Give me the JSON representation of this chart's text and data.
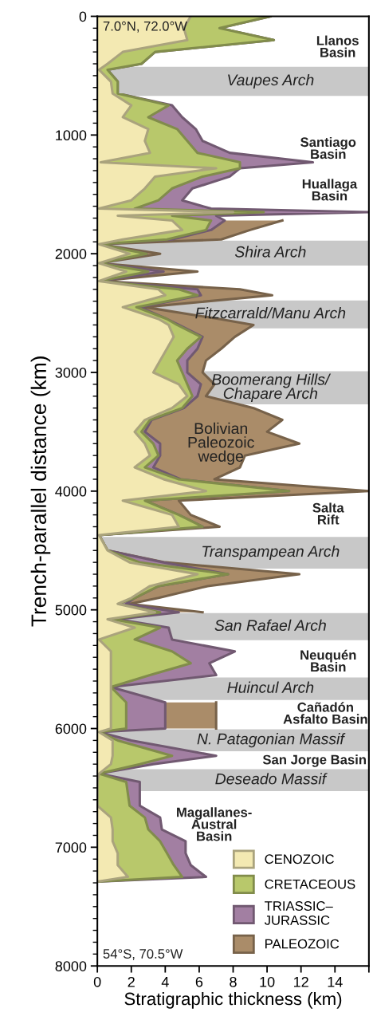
{
  "chart_data": {
    "type": "area",
    "orientation": "horizontal",
    "stacked": true,
    "xlabel": "Stratigraphic thickness (km)",
    "ylabel": "Trench-parallel distance (km)",
    "x": [
      0,
      100,
      200,
      300,
      400,
      450,
      550,
      650,
      750,
      850,
      950,
      1050,
      1150,
      1230,
      1280,
      1350,
      1450,
      1550,
      1620,
      1650,
      1680,
      1720,
      1800,
      1880,
      1920,
      2000,
      2080,
      2150,
      2230,
      2300,
      2350,
      2450,
      2550,
      2600,
      2700,
      2800,
      2900,
      3000,
      3100,
      3200,
      3300,
      3400,
      3500,
      3600,
      3700,
      3800,
      3900,
      4000,
      4080,
      4200,
      4300,
      4370,
      4500,
      4600,
      4700,
      4800,
      4900,
      4950,
      5020,
      5080,
      5150,
      5250,
      5350,
      5450,
      5550,
      5650,
      5780,
      6000,
      6030,
      6100,
      6230,
      6300,
      6380,
      6450,
      6650,
      6750,
      6850,
      6950,
      7050,
      7150,
      7250,
      7290
    ],
    "series": [
      {
        "name": "CENOZOIC",
        "color": "#f3e9b2",
        "values": [
          5.5,
          5.1,
          5.3,
          1.5,
          0.6,
          0.1,
          0.8,
          0.9,
          2.0,
          1.5,
          3.0,
          2.8,
          3.1,
          0.2,
          7.0,
          3.4,
          2.8,
          2.0,
          0.1,
          8.0,
          1.2,
          4.4,
          5.0,
          1.5,
          0.1,
          1.9,
          0.1,
          1.7,
          0.1,
          3.6,
          4.0,
          1.5,
          3.6,
          4.2,
          4.5,
          4.1,
          3.7,
          3.3,
          4.8,
          5.3,
          4.4,
          2.8,
          2.2,
          2.8,
          3.1,
          2.2,
          3.9,
          6.4,
          1.5,
          4.4,
          4.8,
          0.1,
          0.6,
          1.9,
          5.9,
          3.1,
          2.0,
          1.2,
          3.4,
          0.6,
          2.2,
          0.1,
          0.8,
          0.8,
          0.8,
          0.8,
          0.8,
          0.8,
          0.1,
          0.9,
          0.9,
          0.8,
          0.1,
          0,
          0,
          0.8,
          0.9,
          0.9,
          1.2,
          1.2,
          1.8,
          0
        ]
      },
      {
        "name": "CRETACEOUS",
        "color": "#b8c86b",
        "values": [
          4.7,
          2.1,
          5.1,
          1.9,
          2.0,
          0.5,
          0.4,
          0.3,
          2.2,
          1.5,
          1.7,
          2.5,
          2.8,
          8.2,
          1.4,
          2.8,
          1.6,
          1.6,
          2.1,
          1.8,
          3.2,
          2.3,
          1.4,
          2.6,
          0,
          1.0,
          0,
          1.3,
          0,
          1.2,
          1.9,
          0.8,
          0.5,
          0.5,
          1.6,
          1.2,
          1.0,
          1.7,
          0.5,
          0.3,
          0.6,
          0.3,
          0.4,
          0.5,
          0.5,
          0.6,
          0.9,
          4.9,
          1.3,
          0.4,
          1.4,
          0,
          0,
          0.6,
          1.8,
          0.5,
          0.2,
          0,
          0.3,
          0.3,
          1.5,
          2.1,
          3.6,
          4.7,
          2.3,
          0,
          0.9,
          0.9,
          0,
          0.3,
          3.5,
          1.7,
          0,
          1.7,
          1.9,
          2.0,
          2.1,
          2.8,
          2.9,
          3.3,
          3.2,
          0
        ]
      },
      {
        "name": "TRIASSIC–\nJURASSIC",
        "color": "#a27fa2",
        "values": [
          0,
          0,
          0,
          0,
          0,
          0,
          0,
          0,
          0.2,
          2.0,
          1.1,
          0.9,
          1.9,
          4.3,
          0,
          1.6,
          1.2,
          1.4,
          4.5,
          6.2,
          2.6,
          0.8,
          0.3,
          0.3,
          0,
          0,
          0,
          0.9,
          0,
          1.1,
          0.2,
          0.2,
          0,
          0.1,
          0.1,
          0.6,
          0.6,
          0.3,
          0.8,
          0.3,
          0.1,
          0.1,
          0.2,
          0.4,
          0.1,
          0.5,
          0.1,
          0,
          0,
          0,
          0,
          0,
          0,
          1.4,
          0,
          0,
          0,
          0.5,
          1.1,
          0.3,
          0.5,
          2.2,
          3.7,
          1.1,
          3.9,
          0,
          2.3,
          2.3,
          0,
          0.8,
          2.6,
          0.8,
          0,
          0.8,
          0.6,
          0.9,
          0.8,
          1.5,
          1.1,
          1.0,
          1.4,
          0
        ]
      },
      {
        "name": "PALEOZOIC",
        "color": "#aa8c69",
        "values": [
          null,
          null,
          null,
          null,
          null,
          null,
          null,
          null,
          null,
          null,
          null,
          null,
          null,
          null,
          null,
          null,
          null,
          null,
          null,
          null,
          null,
          3.4,
          2.3,
          2.9,
          0,
          0.8,
          0,
          2.0,
          0,
          2.5,
          4.2,
          0.3,
          3.1,
          4.4,
          1.9,
          1.4,
          1.1,
          0.9,
          0.8,
          0.5,
          4.1,
          7.7,
          7.2,
          8.2,
          5.0,
          5.1,
          2.0,
          4.7,
          2.0,
          0.7,
          1.0,
          0,
          0,
          0.1,
          4.2,
          2.9,
          1.4,
          0.2,
          1.4,
          null,
          null,
          null,
          null,
          null,
          null,
          null,
          3.0,
          3.0,
          null,
          null,
          null,
          null,
          null,
          null,
          null,
          null,
          null,
          null,
          null,
          null,
          null,
          null
        ]
      }
    ],
    "xlim": [
      0,
      16
    ],
    "xticks": [
      0,
      2,
      4,
      6,
      8,
      10,
      12,
      14,
      {
        "value": 16,
        "label": null
      }
    ],
    "ylim": [
      8000,
      0
    ],
    "yticks": [
      0,
      1000,
      2000,
      3000,
      4000,
      5000,
      6000,
      7000,
      8000
    ],
    "bands": [
      {
        "axis": "y",
        "from": 425,
        "to": 670,
        "label": "Vaupes Arch",
        "color": "#c8c8c8"
      },
      {
        "axis": "y",
        "from": 1890,
        "to": 2100,
        "label": "Shira Arch",
        "color": "#c8c8c8"
      },
      {
        "axis": "y",
        "from": 2393,
        "to": 2628,
        "label": "Fitzcarrald/Manu Arch",
        "color": "#c8c8c8"
      },
      {
        "axis": "y",
        "from": 2990,
        "to": 3268,
        "label": "Boomerang Hills/\nChapare Arch",
        "color": "#c8c8c8"
      },
      {
        "axis": "y",
        "from": 4385,
        "to": 4652,
        "label": "Transpampean Arch",
        "color": "#c8c8c8"
      },
      {
        "axis": "y",
        "from": 5028,
        "to": 5256,
        "label": "San Rafael Arch",
        "color": "#c8c8c8"
      },
      {
        "axis": "y",
        "from": 5570,
        "to": 5760,
        "label": "Huincul Arch",
        "color": "#c8c8c8"
      },
      {
        "axis": "y",
        "from": 6006,
        "to": 6191,
        "label": "N. Patagonian Massif",
        "color": "#c8c8c8"
      },
      {
        "axis": "y",
        "from": 6342,
        "to": 6528,
        "label": "Deseado Massif",
        "color": "#c8c8c8"
      }
    ],
    "annotations": [
      "7.0°N, 72.0°W",
      "54°S, 70.5°W",
      "Llanos\nBasin",
      "Santiago\nBasin",
      "Huallaga\nBasin",
      "Bolivian\nPaleozoic\nwedge",
      "Salta\nRift",
      "Neuquén\nBasin",
      "Cañadón\nAsfalto Basin",
      "San Jorge Basin",
      "Magallanes-\nAustral\nBasin"
    ],
    "legend": "bottom right",
    "grid": false
  }
}
